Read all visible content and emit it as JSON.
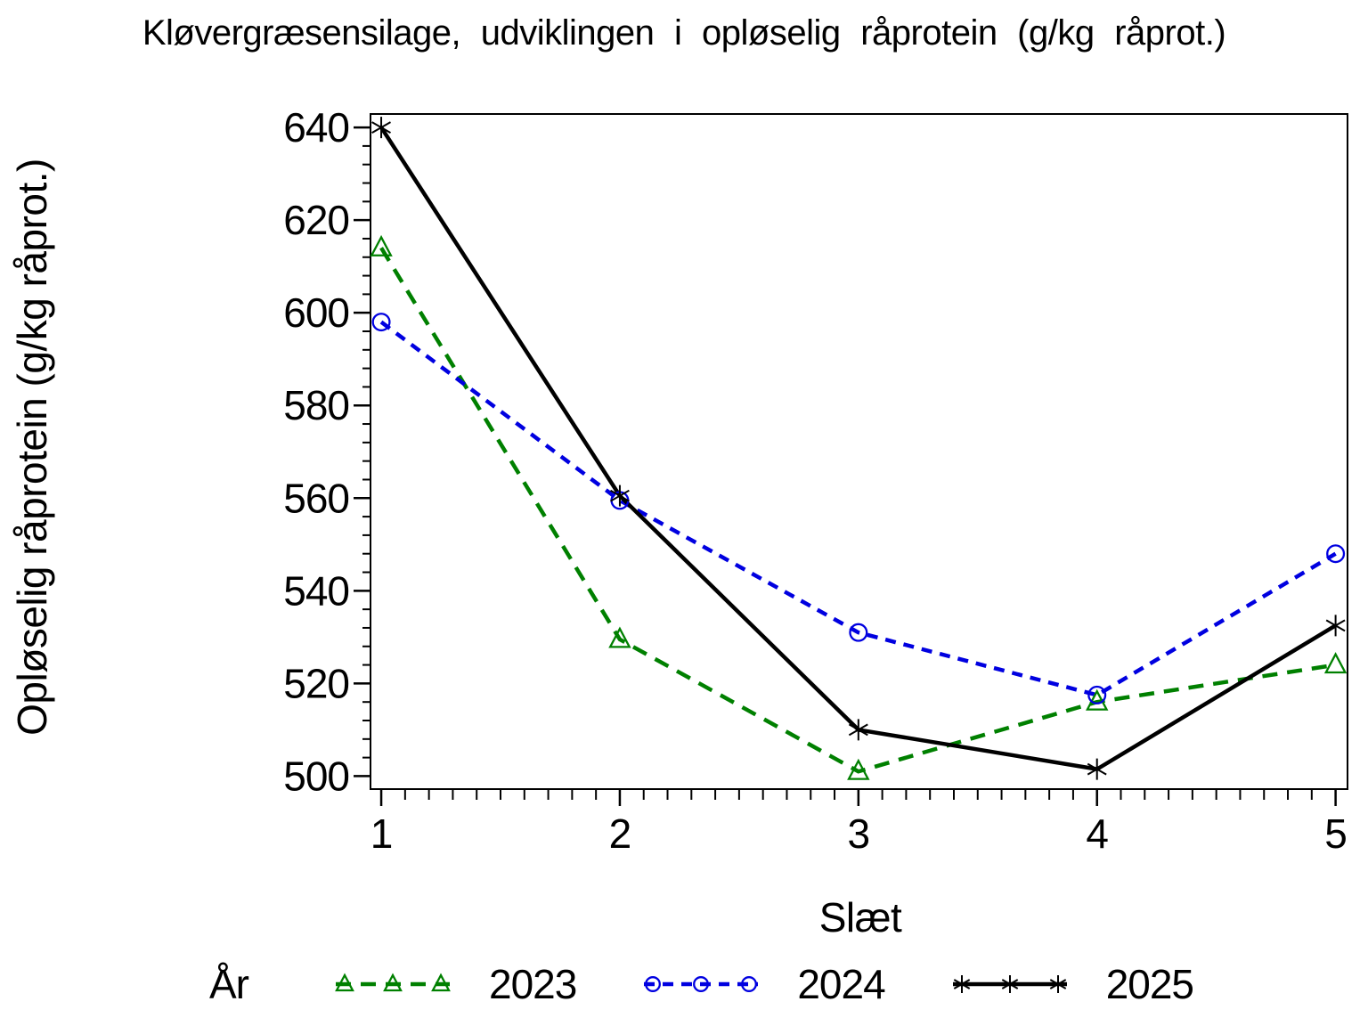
{
  "chart_data": {
    "type": "line",
    "title": "Kløvergræsensilage, udviklingen i opløselig råprotein (g/kg råprot.)",
    "xlabel": "Slæt",
    "ylabel": "Opløselig råprotein (g/kg råprot.)",
    "legend_title": "År",
    "legend_position": "bottom",
    "grid": false,
    "x": [
      1,
      2,
      3,
      4,
      5
    ],
    "series": [
      {
        "name": "2023",
        "color": "#008000",
        "marker": "triangle",
        "line_style": "dashed",
        "dash": "17 11",
        "values": [
          614,
          529.5,
          501,
          516,
          524
        ]
      },
      {
        "name": "2024",
        "color": "#0000e0",
        "marker": "circle",
        "line_style": "dashed",
        "dash": "12 9",
        "values": [
          598,
          559.5,
          531,
          517.5,
          548
        ]
      },
      {
        "name": "2025",
        "color": "#000000",
        "marker": "asterisk",
        "line_style": "solid",
        "dash": null,
        "values": [
          640,
          560.5,
          510,
          501.5,
          532.5
        ]
      }
    ],
    "yticks": [
      500,
      520,
      540,
      560,
      580,
      600,
      620,
      640
    ],
    "y_minor_step": 4,
    "x_minor_step": 0.1,
    "ylim": [
      497.2,
      642.9
    ],
    "xlim": [
      0.955,
      5.05
    ]
  }
}
